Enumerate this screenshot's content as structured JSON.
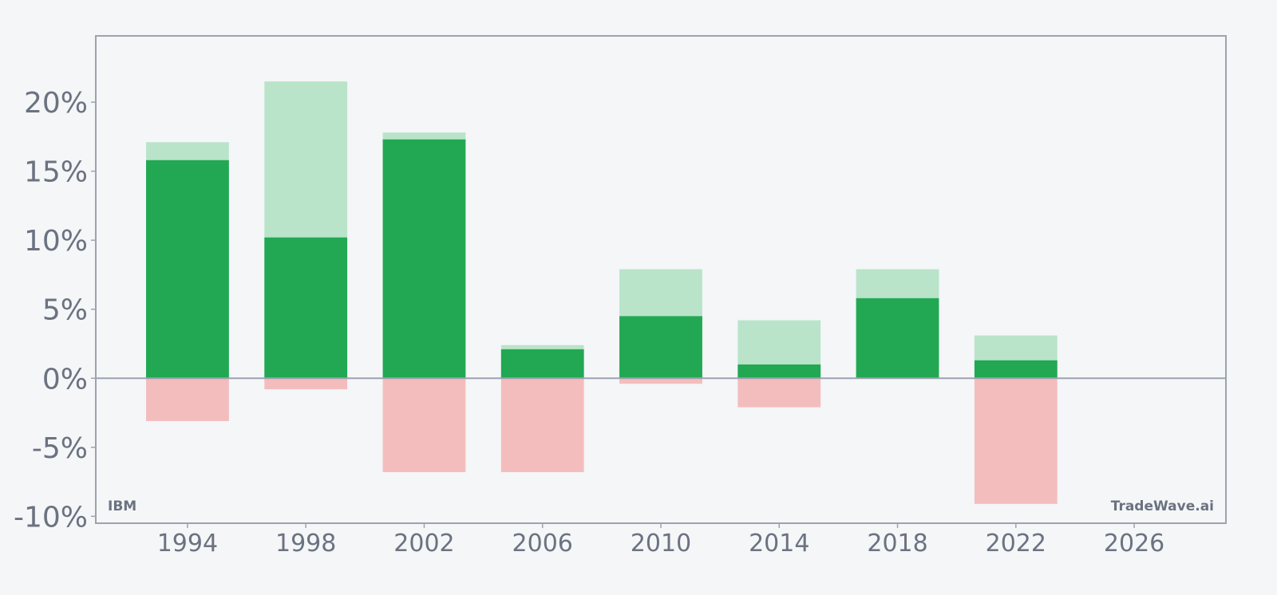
{
  "chart_data": {
    "type": "bar",
    "x": [
      1994,
      1998,
      2002,
      2006,
      2010,
      2014,
      2018,
      2022
    ],
    "series": [
      {
        "values": [
          15.8,
          10.2,
          17.3,
          2.1,
          4.5,
          1.0,
          5.8,
          1.3
        ]
      },
      {
        "values": [
          17.1,
          21.5,
          17.8,
          2.4,
          7.9,
          4.2,
          7.9,
          3.1
        ]
      },
      {
        "values": [
          -3.1,
          -0.8,
          -6.8,
          -6.8,
          -0.4,
          -2.1,
          0,
          -9.1
        ]
      }
    ],
    "ylim": [
      -10.5,
      24.8
    ],
    "xlim": [
      1990.9,
      2029.1
    ],
    "yticks": [
      20,
      15,
      10,
      5,
      0,
      -5,
      -10
    ],
    "ytick_labels": [
      "20%",
      "15%",
      "10%",
      "5%",
      "0%",
      "-5%",
      "-10%"
    ],
    "xticks": [
      1994,
      1998,
      2002,
      2006,
      2010,
      2014,
      2018,
      2022,
      2026
    ],
    "xtick_labels": [
      "1994",
      "1998",
      "2002",
      "2006",
      "2010",
      "2014",
      "2018",
      "2022",
      "2026"
    ],
    "watermark_left": "IBM",
    "watermark_right": "TradeWave.ai",
    "grid": false,
    "colors": {
      "dark_green": "#22a853",
      "light_green": "#b9e4c9",
      "light_red": "#f4bdbd",
      "axis": "#9ca3af",
      "zero_line": "#9ca3af",
      "text": "#6b7280",
      "background": "#f4f6f8"
    }
  }
}
